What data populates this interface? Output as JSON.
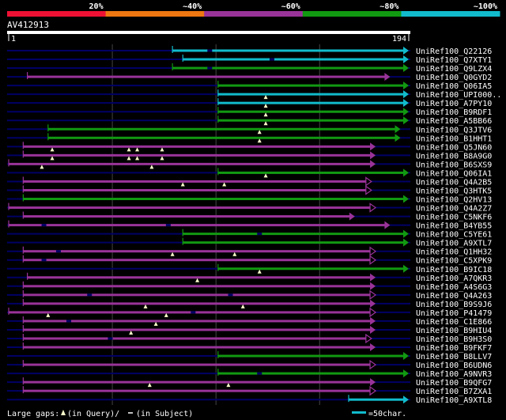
{
  "colors": {
    "background": "#000000",
    "text": "#ffffff",
    "track": "#000066",
    "gridline": "#444444",
    "gap_mark": "#ffffcc",
    "sim_20": "#ee1133",
    "sim_40": "#ee7711",
    "sim_60": "#993399",
    "sim_80": "#119911",
    "sim_100": "#11bbcc"
  },
  "legend": {
    "similarity_labels": [
      "20%",
      "~40%",
      "~60%",
      "~80%",
      "~100%"
    ]
  },
  "query": {
    "id": "AV412913",
    "start_label": "1",
    "end_label": "194",
    "length": 194
  },
  "footer": {
    "large_gaps_label": "Large gaps:",
    "query_gap_text": "(in Query)/",
    "subject_gap_text": "(in Subject)",
    "scale_text": "=50char."
  },
  "hits": [
    {
      "name": "UniRef100_Q22126",
      "start": 80,
      "end": 194,
      "sim": "100",
      "arrow": "filled",
      "gaps_q": [],
      "gaps_s": [
        98
      ]
    },
    {
      "name": "UniRef100_Q7XTY1",
      "start": 85,
      "end": 194,
      "sim": "100",
      "arrow": "filled",
      "gaps_q": [],
      "gaps_s": [
        128
      ]
    },
    {
      "name": "UniRef100_Q9LZX4",
      "start": 80,
      "end": 194,
      "sim": "80",
      "arrow": "filled",
      "gaps_q": [],
      "gaps_s": [
        98
      ]
    },
    {
      "name": "UniRef100_Q0GYD2",
      "start": 10,
      "end": 185,
      "sim": "60",
      "arrow": "filled",
      "gaps_q": [],
      "gaps_s": []
    },
    {
      "name": "UniRef100_Q06IA5",
      "start": 102,
      "end": 194,
      "sim": "80",
      "arrow": "filled",
      "gaps_q": [],
      "gaps_s": []
    },
    {
      "name": "UniRef100_UPI000..",
      "start": 102,
      "end": 194,
      "sim": "100",
      "arrow": "filled",
      "gaps_q": [
        125
      ],
      "gaps_s": []
    },
    {
      "name": "UniRef100_A7PY10",
      "start": 102,
      "end": 194,
      "sim": "100",
      "arrow": "filled",
      "gaps_q": [
        125
      ],
      "gaps_s": []
    },
    {
      "name": "UniRef100_B9RDF1",
      "start": 102,
      "end": 194,
      "sim": "80",
      "arrow": "filled",
      "gaps_q": [
        125
      ],
      "gaps_s": []
    },
    {
      "name": "UniRef100_A5BB66",
      "start": 102,
      "end": 194,
      "sim": "80",
      "arrow": "filled",
      "gaps_q": [
        125
      ],
      "gaps_s": []
    },
    {
      "name": "UniRef100_Q3JTV6",
      "start": 20,
      "end": 190,
      "sim": "80",
      "arrow": "filled",
      "gaps_q": [
        122
      ],
      "gaps_s": []
    },
    {
      "name": "UniRef100_B1HHT1",
      "start": 20,
      "end": 190,
      "sim": "80",
      "arrow": "filled",
      "gaps_q": [
        122
      ],
      "gaps_s": []
    },
    {
      "name": "UniRef100_Q5JN60",
      "start": 8,
      "end": 178,
      "sim": "60",
      "arrow": "filled",
      "gaps_q": [
        22,
        59,
        63,
        75
      ],
      "gaps_s": []
    },
    {
      "name": "UniRef100_B8A9G0",
      "start": 8,
      "end": 178,
      "sim": "60",
      "arrow": "filled",
      "gaps_q": [
        22,
        59,
        63,
        75
      ],
      "gaps_s": []
    },
    {
      "name": "UniRef100_B6SXS9",
      "start": 1,
      "end": 178,
      "sim": "60",
      "arrow": "filled",
      "gaps_q": [
        17,
        70
      ],
      "gaps_s": []
    },
    {
      "name": "UniRef100_Q06IA1",
      "start": 102,
      "end": 194,
      "sim": "80",
      "arrow": "filled",
      "gaps_q": [
        125
      ],
      "gaps_s": []
    },
    {
      "name": "UniRef100_Q4A2B5",
      "start": 8,
      "end": 176,
      "sim": "60",
      "arrow": "open",
      "gaps_q": [
        85,
        105
      ],
      "gaps_s": []
    },
    {
      "name": "UniRef100_Q3HTK5",
      "start": 8,
      "end": 176,
      "sim": "60",
      "arrow": "open",
      "gaps_q": [],
      "gaps_s": []
    },
    {
      "name": "UniRef100_Q2HV13",
      "start": 8,
      "end": 194,
      "sim": "80",
      "arrow": "filled",
      "gaps_q": [],
      "gaps_s": []
    },
    {
      "name": "UniRef100_Q4A2Z7",
      "start": 1,
      "end": 178,
      "sim": "60",
      "arrow": "open",
      "gaps_q": [],
      "gaps_s": []
    },
    {
      "name": "UniRef100_C5NKF6",
      "start": 8,
      "end": 168,
      "sim": "60",
      "arrow": "filled",
      "gaps_q": [],
      "gaps_s": []
    },
    {
      "name": "UniRef100_B4YB55",
      "start": 1,
      "end": 185,
      "sim": "60",
      "arrow": "filled",
      "gaps_q": [],
      "gaps_s": [
        18,
        78
      ]
    },
    {
      "name": "UniRef100_C5YE61",
      "start": 85,
      "end": 194,
      "sim": "80",
      "arrow": "filled",
      "gaps_q": [],
      "gaps_s": [
        122
      ]
    },
    {
      "name": "UniRef100_A9XTL7",
      "start": 85,
      "end": 194,
      "sim": "80",
      "arrow": "filled",
      "gaps_q": [],
      "gaps_s": []
    },
    {
      "name": "UniRef100_Q1HH32",
      "start": 8,
      "end": 178,
      "sim": "60",
      "arrow": "open",
      "gaps_q": [
        80,
        110
      ],
      "gaps_s": [
        25
      ]
    },
    {
      "name": "UniRef100_C5XPK9",
      "start": 8,
      "end": 178,
      "sim": "60",
      "arrow": "open",
      "gaps_q": [],
      "gaps_s": [
        18
      ]
    },
    {
      "name": "UniRef100_B9IC18",
      "start": 102,
      "end": 194,
      "sim": "80",
      "arrow": "filled",
      "gaps_q": [
        122
      ],
      "gaps_s": []
    },
    {
      "name": "UniRef100_A7QKR3",
      "start": 10,
      "end": 178,
      "sim": "60",
      "arrow": "filled",
      "gaps_q": [
        92
      ],
      "gaps_s": []
    },
    {
      "name": "UniRef100_A4S6G3",
      "start": 8,
      "end": 178,
      "sim": "60",
      "arrow": "filled",
      "gaps_q": [],
      "gaps_s": []
    },
    {
      "name": "UniRef100_Q4A263",
      "start": 8,
      "end": 178,
      "sim": "60",
      "arrow": "open",
      "gaps_q": [],
      "gaps_s": [
        40,
        108
      ]
    },
    {
      "name": "UniRef100_B9S9J6",
      "start": 8,
      "end": 178,
      "sim": "60",
      "arrow": "filled",
      "gaps_q": [
        67,
        114
      ],
      "gaps_s": []
    },
    {
      "name": "UniRef100_P41479",
      "start": 1,
      "end": 178,
      "sim": "60",
      "arrow": "open",
      "gaps_q": [
        20,
        77
      ],
      "gaps_s": [
        90
      ]
    },
    {
      "name": "UniRef100_C1E866",
      "start": 8,
      "end": 178,
      "sim": "60",
      "arrow": "filled",
      "gaps_q": [
        72
      ],
      "gaps_s": [
        30
      ]
    },
    {
      "name": "UniRef100_B9HIU4",
      "start": 8,
      "end": 178,
      "sim": "60",
      "arrow": "filled",
      "gaps_q": [
        60
      ],
      "gaps_s": []
    },
    {
      "name": "UniRef100_B9H3S0",
      "start": 8,
      "end": 176,
      "sim": "60",
      "arrow": "open",
      "gaps_q": [],
      "gaps_s": [
        50
      ]
    },
    {
      "name": "UniRef100_B9FKF7",
      "start": 8,
      "end": 178,
      "sim": "60",
      "arrow": "filled",
      "gaps_q": [],
      "gaps_s": []
    },
    {
      "name": "UniRef100_B8LLV7",
      "start": 102,
      "end": 194,
      "sim": "80",
      "arrow": "filled",
      "gaps_q": [],
      "gaps_s": []
    },
    {
      "name": "UniRef100_B6UDN6",
      "start": 8,
      "end": 178,
      "sim": "60",
      "arrow": "open",
      "gaps_q": [],
      "gaps_s": []
    },
    {
      "name": "UniRef100_A9NVR3",
      "start": 102,
      "end": 194,
      "sim": "80",
      "arrow": "filled",
      "gaps_q": [],
      "gaps_s": [
        122
      ]
    },
    {
      "name": "UniRef100_B9QFG7",
      "start": 8,
      "end": 178,
      "sim": "60",
      "arrow": "filled",
      "gaps_q": [
        69,
        107
      ],
      "gaps_s": []
    },
    {
      "name": "UniRef100_B7ZXA1",
      "start": 8,
      "end": 178,
      "sim": "60",
      "arrow": "open",
      "gaps_q": [],
      "gaps_s": []
    },
    {
      "name": "UniRef100_A9XTL8",
      "start": 165,
      "end": 194,
      "sim": "100",
      "arrow": "filled",
      "gaps_q": [],
      "gaps_s": []
    }
  ]
}
